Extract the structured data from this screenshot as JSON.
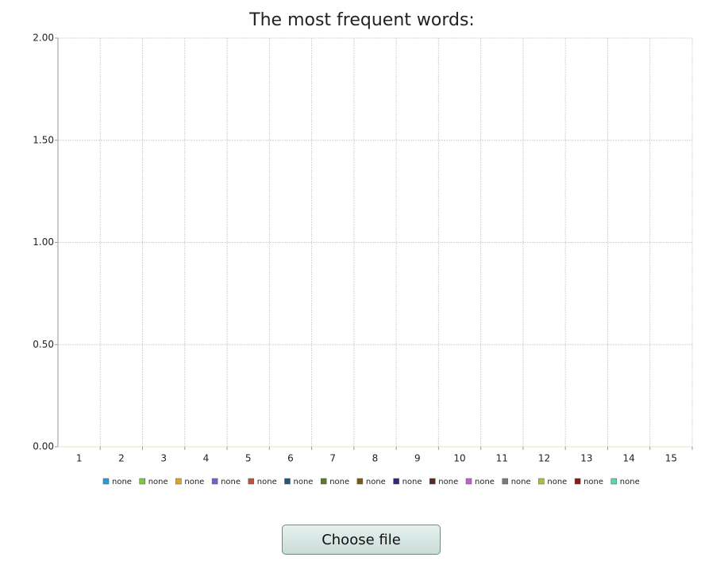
{
  "chart_data": {
    "type": "bar",
    "title": "The most frequent words:",
    "categories": [
      "1",
      "2",
      "3",
      "4",
      "5",
      "6",
      "7",
      "8",
      "9",
      "10",
      "11",
      "12",
      "13",
      "14",
      "15"
    ],
    "series": [
      {
        "name": "none",
        "color": "#2d9bd2",
        "values": [
          0,
          0,
          0,
          0,
          0,
          0,
          0,
          0,
          0,
          0,
          0,
          0,
          0,
          0,
          0
        ]
      },
      {
        "name": "none",
        "color": "#7ac943",
        "values": [
          0,
          0,
          0,
          0,
          0,
          0,
          0,
          0,
          0,
          0,
          0,
          0,
          0,
          0,
          0
        ]
      },
      {
        "name": "none",
        "color": "#e8a121",
        "values": [
          0,
          0,
          0,
          0,
          0,
          0,
          0,
          0,
          0,
          0,
          0,
          0,
          0,
          0,
          0
        ]
      },
      {
        "name": "none",
        "color": "#7a5cd4",
        "values": [
          0,
          0,
          0,
          0,
          0,
          0,
          0,
          0,
          0,
          0,
          0,
          0,
          0,
          0,
          0
        ]
      },
      {
        "name": "none",
        "color": "#c0503c",
        "values": [
          0,
          0,
          0,
          0,
          0,
          0,
          0,
          0,
          0,
          0,
          0,
          0,
          0,
          0,
          0
        ]
      },
      {
        "name": "none",
        "color": "#1f5a80",
        "values": [
          0,
          0,
          0,
          0,
          0,
          0,
          0,
          0,
          0,
          0,
          0,
          0,
          0,
          0,
          0
        ]
      },
      {
        "name": "none",
        "color": "#5c7a2c",
        "values": [
          0,
          0,
          0,
          0,
          0,
          0,
          0,
          0,
          0,
          0,
          0,
          0,
          0,
          0,
          0
        ]
      },
      {
        "name": "none",
        "color": "#7a5a14",
        "values": [
          0,
          0,
          0,
          0,
          0,
          0,
          0,
          0,
          0,
          0,
          0,
          0,
          0,
          0,
          0
        ]
      },
      {
        "name": "none",
        "color": "#2c2a7a",
        "values": [
          0,
          0,
          0,
          0,
          0,
          0,
          0,
          0,
          0,
          0,
          0,
          0,
          0,
          0,
          0
        ]
      },
      {
        "name": "none",
        "color": "#5a2a1e",
        "values": [
          0,
          0,
          0,
          0,
          0,
          0,
          0,
          0,
          0,
          0,
          0,
          0,
          0,
          0,
          0
        ]
      },
      {
        "name": "none",
        "color": "#c85ad8",
        "values": [
          0,
          0,
          0,
          0,
          0,
          0,
          0,
          0,
          0,
          0,
          0,
          0,
          0,
          0,
          0
        ]
      },
      {
        "name": "none",
        "color": "#7a7a7a",
        "values": [
          0,
          0,
          0,
          0,
          0,
          0,
          0,
          0,
          0,
          0,
          0,
          0,
          0,
          0,
          0
        ]
      },
      {
        "name": "none",
        "color": "#a8c040",
        "values": [
          0,
          0,
          0,
          0,
          0,
          0,
          0,
          0,
          0,
          0,
          0,
          0,
          0,
          0,
          0
        ]
      },
      {
        "name": "none",
        "color": "#8a1a1a",
        "values": [
          0,
          0,
          0,
          0,
          0,
          0,
          0,
          0,
          0,
          0,
          0,
          0,
          0,
          0,
          0
        ]
      },
      {
        "name": "none",
        "color": "#5ad8a8",
        "values": [
          0,
          0,
          0,
          0,
          0,
          0,
          0,
          0,
          0,
          0,
          0,
          0,
          0,
          0,
          0
        ]
      }
    ],
    "ylim": [
      0,
      2
    ],
    "yticks": [
      {
        "value": 0,
        "label": "0.00"
      },
      {
        "value": 0.5,
        "label": "0.50"
      },
      {
        "value": 1,
        "label": "1.00"
      },
      {
        "value": 1.5,
        "label": "1.50"
      },
      {
        "value": 2,
        "label": "2.00"
      }
    ],
    "grid": true
  },
  "button": {
    "label": "Choose file"
  }
}
